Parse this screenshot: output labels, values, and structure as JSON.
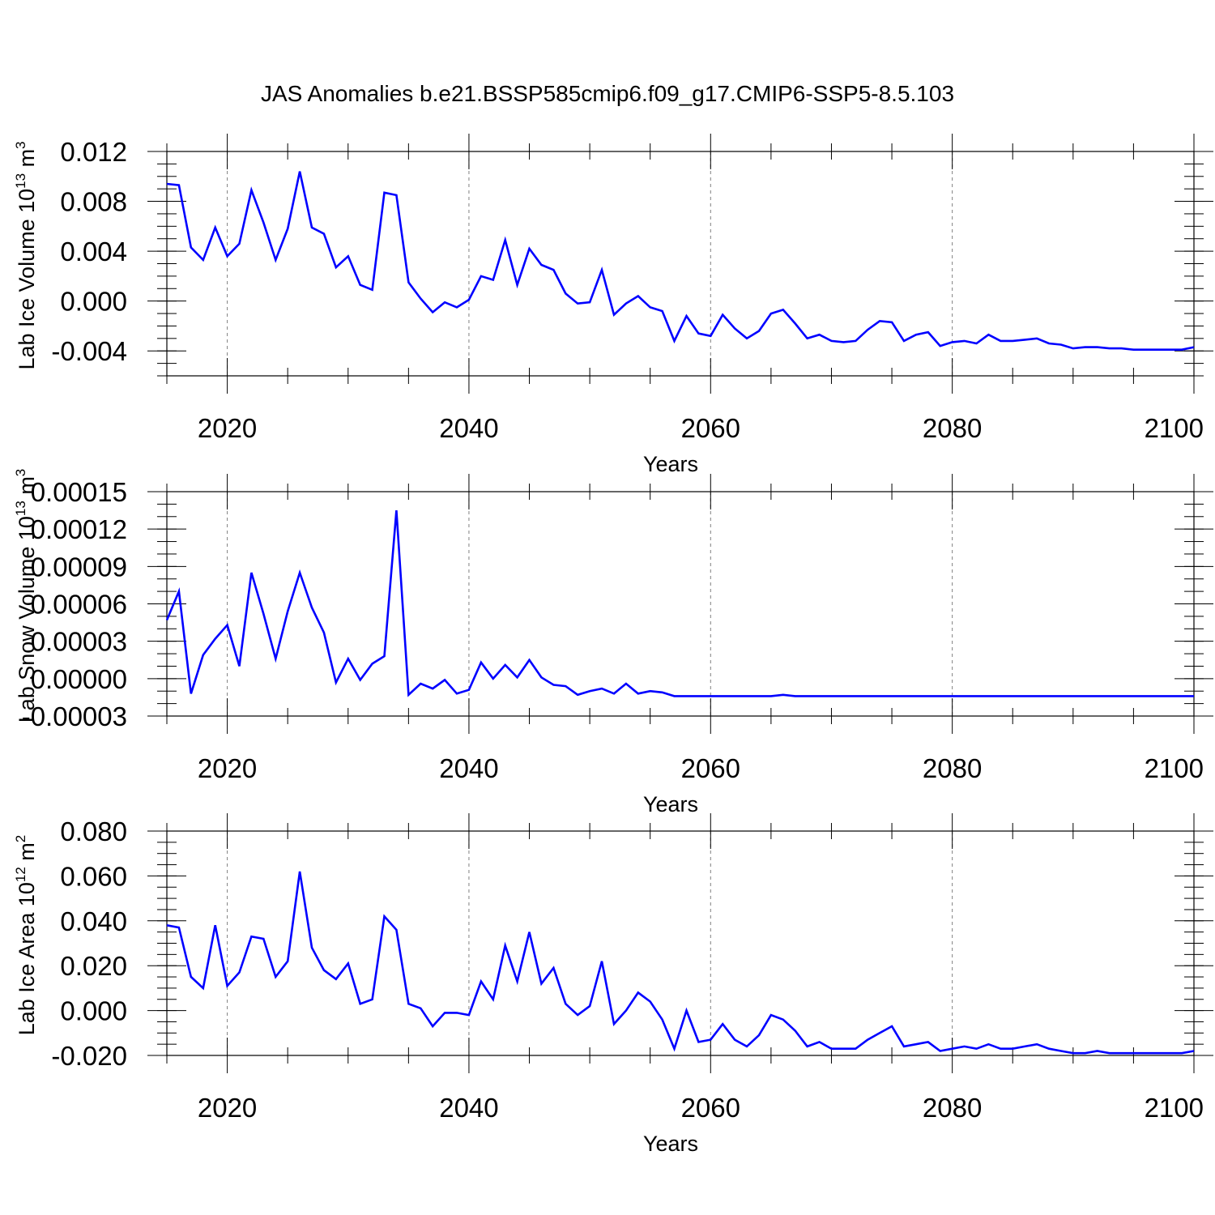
{
  "chart_data": [
    {
      "type": "line",
      "title": "JAS Anomalies b.e21.BSSP585cmip6.f09_g17.CMIP6-SSP5-8.5.103",
      "xlabel": "Years",
      "ylabel": "Lab Ice Volume 10",
      "ylabel_exponent": "13",
      "ylabel_unit": "m",
      "ylabel_unit_power": "3",
      "xlim": [
        2015,
        2100
      ],
      "ylim": [
        -0.006,
        0.012
      ],
      "x_ticks": [
        2020,
        2040,
        2060,
        2080,
        2100
      ],
      "x_tick_labels": [
        "2020",
        "2040",
        "2060",
        "2080",
        "2100"
      ],
      "y_ticks": [
        -0.004,
        0.0,
        0.004,
        0.008,
        0.012
      ],
      "y_tick_labels": [
        "-0.004",
        "0.000",
        "0.004",
        "0.008",
        "0.012"
      ],
      "y_minor_step": 0.001,
      "vgrid_years": [
        2020,
        2040,
        2060,
        2080
      ],
      "color": "#0000ff",
      "x_start": 2015,
      "values": [
        0.0094,
        0.0093,
        0.0043,
        0.0033,
        0.0059,
        0.0036,
        0.0046,
        0.0089,
        0.0063,
        0.0033,
        0.0058,
        0.0104,
        0.0059,
        0.0054,
        0.0027,
        0.0036,
        0.0013,
        0.0009,
        0.0087,
        0.0085,
        0.0015,
        0.0002,
        -0.0009,
        -0.0001,
        -0.0005,
        0.0001,
        0.002,
        0.0017,
        0.0049,
        0.0013,
        0.0042,
        0.0029,
        0.0025,
        0.0006,
        -0.0002,
        -0.0001,
        0.0025,
        -0.0011,
        -0.0002,
        0.0004,
        -0.0005,
        -0.0008,
        -0.0032,
        -0.0012,
        -0.0026,
        -0.0028,
        -0.0011,
        -0.0022,
        -0.003,
        -0.0024,
        -0.001,
        -0.0007,
        -0.0018,
        -0.003,
        -0.0027,
        -0.0032,
        -0.0033,
        -0.0032,
        -0.0023,
        -0.0016,
        -0.0017,
        -0.0032,
        -0.0027,
        -0.0025,
        -0.0036,
        -0.0033,
        -0.0032,
        -0.0034,
        -0.0027,
        -0.0032,
        -0.0032,
        -0.0031,
        -0.003,
        -0.0034,
        -0.0035,
        -0.0038,
        -0.0037,
        -0.0037,
        -0.0038,
        -0.0038,
        -0.0039,
        -0.0039,
        -0.0039,
        -0.0039,
        -0.0039,
        -0.0037
      ]
    },
    {
      "type": "line",
      "xlabel": "Years",
      "ylabel": "Lab Snow Volume 10",
      "ylabel_exponent": "13",
      "ylabel_unit": "m",
      "ylabel_unit_power": "3",
      "xlim": [
        2015,
        2100
      ],
      "ylim": [
        -3e-05,
        0.00015
      ],
      "x_ticks": [
        2020,
        2040,
        2060,
        2080,
        2100
      ],
      "x_tick_labels": [
        "2020",
        "2040",
        "2060",
        "2080",
        "2100"
      ],
      "y_ticks": [
        -3e-05,
        0.0,
        3e-05,
        6e-05,
        9e-05,
        0.00012,
        0.00015
      ],
      "y_tick_labels": [
        "-0.00003",
        "0.00000",
        "0.00003",
        "0.00006",
        "0.00009",
        "0.00012",
        "0.00015"
      ],
      "y_minor_step": 1e-05,
      "vgrid_years": [
        2020,
        2040,
        2060,
        2080
      ],
      "color": "#0000ff",
      "x_start": 2015,
      "values": [
        4.7e-05,
        7e-05,
        -1.2e-05,
        1.9e-05,
        3.2e-05,
        4.3e-05,
        1e-05,
        8.5e-05,
        5.2e-05,
        1.6e-05,
        5.4e-05,
        8.5e-05,
        5.7e-05,
        3.7e-05,
        -3e-06,
        1.6e-05,
        -1e-06,
        1.2e-05,
        1.8e-05,
        0.000135,
        -1.3e-05,
        -4e-06,
        -8e-06,
        -1e-06,
        -1.2e-05,
        -9e-06,
        1.3e-05,
        0.0,
        1.1e-05,
        1e-06,
        1.5e-05,
        1e-06,
        -5e-06,
        -6e-06,
        -1.3e-05,
        -1e-05,
        -8e-06,
        -1.2e-05,
        -4e-06,
        -1.2e-05,
        -1e-05,
        -1.1e-05,
        -1.4e-05,
        -1.4e-05,
        -1.4e-05,
        -1.4e-05,
        -1.4e-05,
        -1.4e-05,
        -1.4e-05,
        -1.4e-05,
        -1.4e-05,
        -1.3e-05,
        -1.4e-05,
        -1.4e-05,
        -1.4e-05,
        -1.4e-05,
        -1.4e-05,
        -1.4e-05,
        -1.4e-05,
        -1.4e-05,
        -1.4e-05,
        -1.4e-05,
        -1.4e-05,
        -1.4e-05,
        -1.4e-05,
        -1.4e-05,
        -1.4e-05,
        -1.4e-05,
        -1.4e-05,
        -1.4e-05,
        -1.4e-05,
        -1.4e-05,
        -1.4e-05,
        -1.4e-05,
        -1.4e-05,
        -1.4e-05,
        -1.4e-05,
        -1.4e-05,
        -1.4e-05,
        -1.4e-05,
        -1.4e-05,
        -1.4e-05,
        -1.4e-05,
        -1.4e-05,
        -1.4e-05,
        -1.4e-05
      ]
    },
    {
      "type": "line",
      "xlabel": "Years",
      "ylabel": "Lab Ice Area 10",
      "ylabel_exponent": "12",
      "ylabel_unit": "m",
      "ylabel_unit_power": "2",
      "xlim": [
        2015,
        2100
      ],
      "ylim": [
        -0.02,
        0.08
      ],
      "x_ticks": [
        2020,
        2040,
        2060,
        2080,
        2100
      ],
      "x_tick_labels": [
        "2020",
        "2040",
        "2060",
        "2080",
        "2100"
      ],
      "y_ticks": [
        -0.02,
        0.0,
        0.02,
        0.04,
        0.06,
        0.08
      ],
      "y_tick_labels": [
        "-0.020",
        "0.000",
        "0.020",
        "0.040",
        "0.060",
        "0.080"
      ],
      "y_minor_step": 0.005,
      "vgrid_years": [
        2020,
        2040,
        2060,
        2080
      ],
      "color": "#0000ff",
      "x_start": 2015,
      "values": [
        0.038,
        0.037,
        0.015,
        0.01,
        0.038,
        0.011,
        0.017,
        0.033,
        0.032,
        0.015,
        0.022,
        0.062,
        0.028,
        0.018,
        0.014,
        0.021,
        0.003,
        0.005,
        0.042,
        0.036,
        0.003,
        0.001,
        -0.007,
        -0.001,
        -0.001,
        -0.002,
        0.013,
        0.005,
        0.029,
        0.013,
        0.035,
        0.012,
        0.019,
        0.003,
        -0.002,
        0.002,
        0.022,
        -0.006,
        0.0,
        0.008,
        0.004,
        -0.004,
        -0.017,
        0.0,
        -0.014,
        -0.013,
        -0.006,
        -0.013,
        -0.016,
        -0.011,
        -0.002,
        -0.004,
        -0.009,
        -0.016,
        -0.014,
        -0.017,
        -0.017,
        -0.017,
        -0.013,
        -0.01,
        -0.007,
        -0.016,
        -0.015,
        -0.014,
        -0.018,
        -0.017,
        -0.016,
        -0.017,
        -0.015,
        -0.017,
        -0.017,
        -0.016,
        -0.015,
        -0.017,
        -0.018,
        -0.019,
        -0.019,
        -0.018,
        -0.019,
        -0.019,
        -0.019,
        -0.019,
        -0.019,
        -0.019,
        -0.019,
        -0.018
      ]
    }
  ]
}
